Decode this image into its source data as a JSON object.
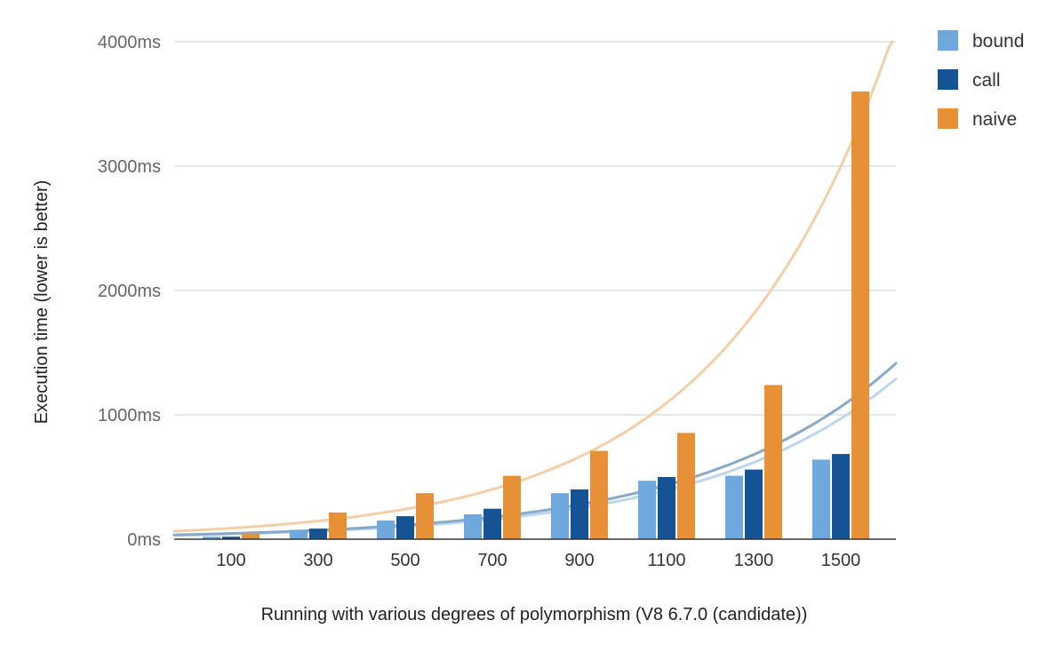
{
  "chart_data": {
    "type": "bar",
    "title": "",
    "xlabel": "Running with various degrees of polymorphism (V8  6.7.0 (candidate))",
    "ylabel": "Execution time (lower is better)",
    "categories": [
      "100",
      "300",
      "500",
      "700",
      "900",
      "1100",
      "1300",
      "1500"
    ],
    "y_ticks": [
      "0ms",
      "1000ms",
      "2000ms",
      "3000ms",
      "4000ms"
    ],
    "ylim": [
      0,
      4000
    ],
    "grid": true,
    "legend_position": "right",
    "series": [
      {
        "name": "bound",
        "color": "#6fa8dc",
        "values": [
          20,
          75,
          150,
          200,
          370,
          470,
          510,
          640
        ]
      },
      {
        "name": "call",
        "color": "#155394",
        "values": [
          20,
          85,
          185,
          245,
          400,
          500,
          560,
          685
        ]
      },
      {
        "name": "naive",
        "color": "#e69138",
        "values": [
          45,
          215,
          370,
          510,
          710,
          855,
          1240,
          3600
        ]
      }
    ],
    "trendlines": [
      {
        "series": "bound",
        "type": "exponential",
        "color": "#bcd6ee"
      },
      {
        "series": "call",
        "type": "exponential",
        "color": "#89a9c9"
      },
      {
        "series": "naive",
        "type": "exponential",
        "color": "#f3cfa8"
      }
    ]
  }
}
